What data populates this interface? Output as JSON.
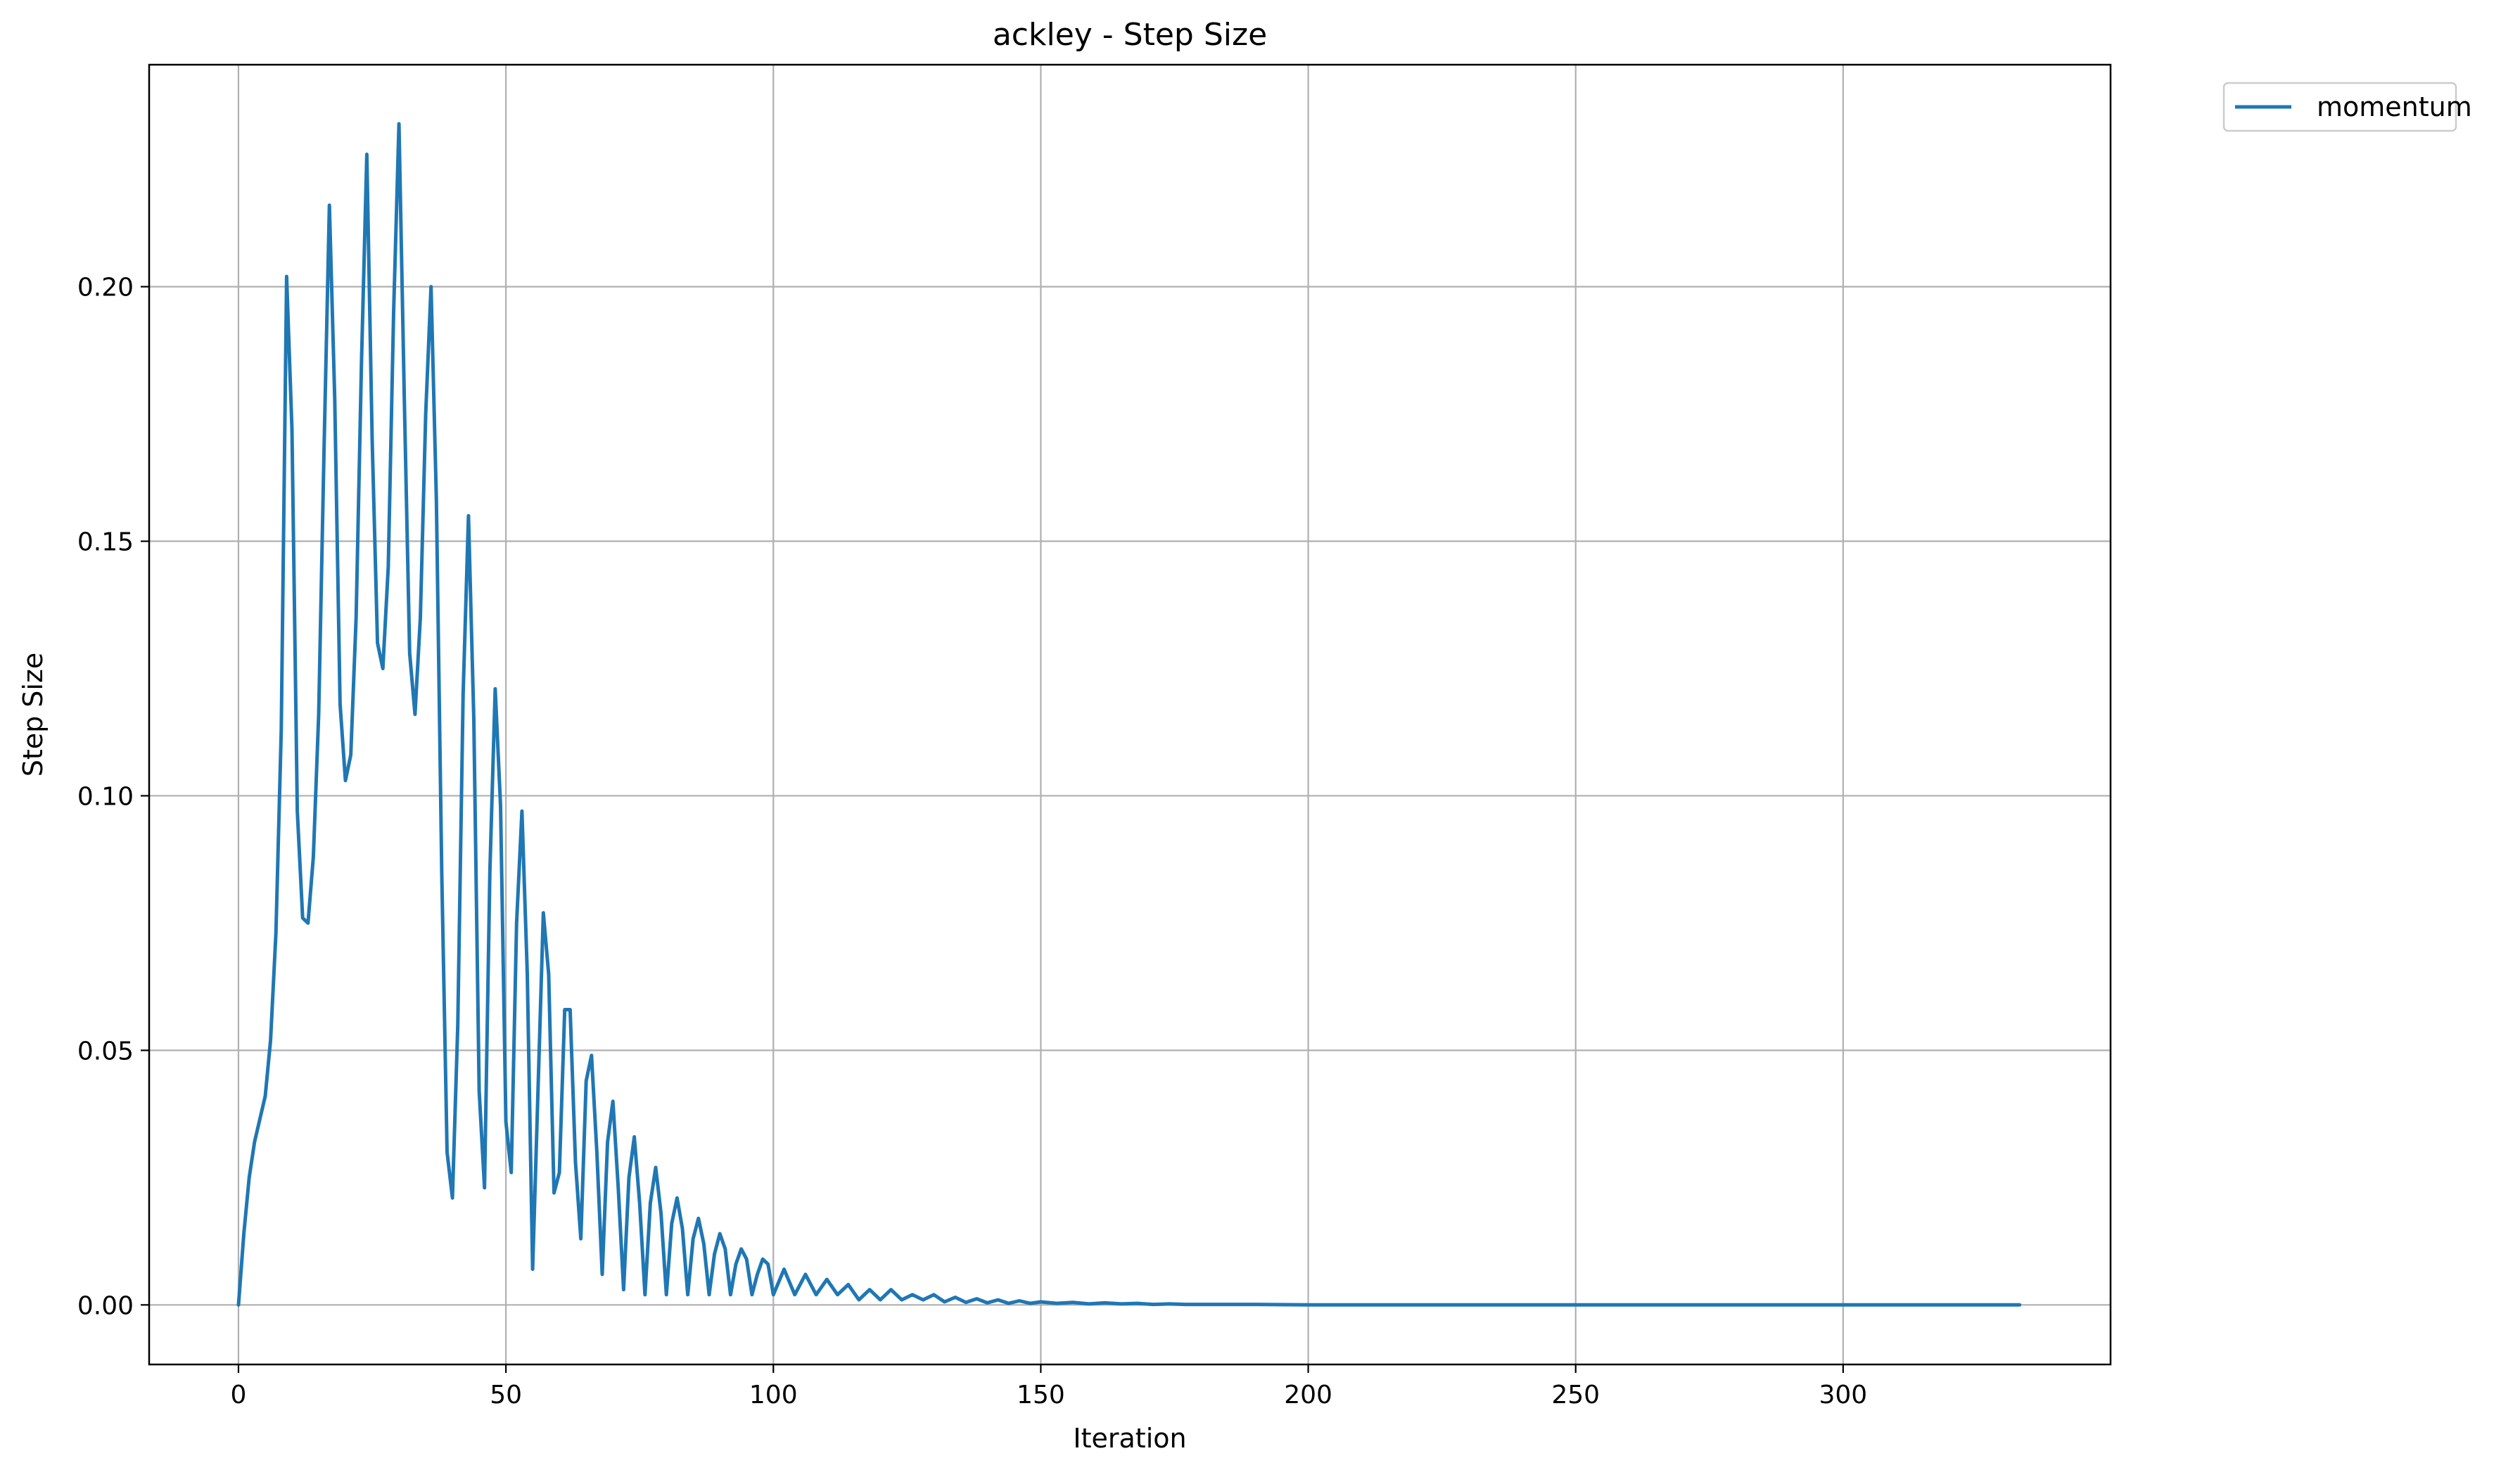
{
  "chart_data": {
    "type": "line",
    "title": "ackley - Step Size",
    "xlabel": "Iteration",
    "ylabel": "Step Size",
    "xlim": [
      -16.7,
      350
    ],
    "ylim": [
      -0.0117,
      0.2436
    ],
    "xticks": [
      0,
      50,
      100,
      150,
      200,
      250,
      300
    ],
    "yticks": [
      0.0,
      0.05,
      0.1,
      0.15,
      0.2
    ],
    "ytick_labels": [
      "0.00",
      "0.05",
      "0.10",
      "0.15",
      "0.20"
    ],
    "grid": true,
    "legend_position": "outside-top-right",
    "series": [
      {
        "name": "momentum",
        "color": "#1f77b4",
        "x": [
          0,
          1,
          2,
          3,
          5,
          6,
          7,
          8,
          9,
          10,
          11,
          12,
          13,
          14,
          15,
          16,
          17,
          18,
          19,
          20,
          21,
          22,
          23,
          24,
          25,
          26,
          27,
          28,
          29,
          30,
          31,
          32,
          33,
          34,
          35,
          36,
          37,
          38,
          39,
          40,
          41,
          42,
          43,
          44,
          45,
          46,
          47,
          48,
          49,
          50,
          51,
          52,
          53,
          54,
          55,
          56,
          57,
          58,
          59,
          60,
          61,
          62,
          63,
          64,
          65,
          66,
          67,
          68,
          69,
          70,
          71,
          72,
          73,
          74,
          75,
          76,
          77,
          78,
          79,
          80,
          81,
          82,
          83,
          84,
          85,
          86,
          87,
          88,
          89,
          90,
          91,
          92,
          93,
          94,
          95,
          96,
          97,
          98,
          99,
          100,
          102,
          104,
          106,
          108,
          110,
          112,
          114,
          116,
          118,
          120,
          122,
          124,
          126,
          128,
          130,
          132,
          134,
          136,
          138,
          140,
          142,
          144,
          146,
          148,
          150,
          153,
          156,
          159,
          162,
          165,
          168,
          171,
          174,
          177,
          180,
          185,
          190,
          200,
          220,
          250,
          300,
          333
        ],
        "y": [
          0.0,
          0.014,
          0.025,
          0.032,
          0.041,
          0.052,
          0.073,
          0.113,
          0.202,
          0.172,
          0.097,
          0.076,
          0.075,
          0.088,
          0.116,
          0.168,
          0.216,
          0.178,
          0.118,
          0.103,
          0.108,
          0.135,
          0.185,
          0.226,
          0.17,
          0.13,
          0.125,
          0.145,
          0.195,
          0.232,
          0.178,
          0.128,
          0.116,
          0.135,
          0.175,
          0.2,
          0.158,
          0.085,
          0.03,
          0.021,
          0.055,
          0.12,
          0.155,
          0.115,
          0.042,
          0.023,
          0.085,
          0.121,
          0.098,
          0.036,
          0.026,
          0.075,
          0.097,
          0.065,
          0.007,
          0.042,
          0.077,
          0.065,
          0.022,
          0.026,
          0.058,
          0.058,
          0.028,
          0.013,
          0.044,
          0.049,
          0.03,
          0.006,
          0.032,
          0.04,
          0.023,
          0.003,
          0.025,
          0.033,
          0.02,
          0.002,
          0.02,
          0.027,
          0.018,
          0.002,
          0.016,
          0.021,
          0.015,
          0.002,
          0.013,
          0.017,
          0.012,
          0.002,
          0.01,
          0.014,
          0.011,
          0.002,
          0.008,
          0.011,
          0.009,
          0.002,
          0.006,
          0.009,
          0.008,
          0.002,
          0.007,
          0.002,
          0.006,
          0.002,
          0.005,
          0.002,
          0.004,
          0.001,
          0.003,
          0.001,
          0.003,
          0.001,
          0.002,
          0.001,
          0.002,
          0.0006,
          0.0015,
          0.0005,
          0.0012,
          0.0004,
          0.001,
          0.0003,
          0.0008,
          0.0003,
          0.0006,
          0.0003,
          0.0005,
          0.0002,
          0.0004,
          0.0002,
          0.0003,
          0.0001,
          0.0002,
          0.0001,
          0.0001,
          0.0001,
          0.0001,
          0.0,
          0.0,
          0.0,
          0.0,
          0.0
        ]
      }
    ]
  }
}
